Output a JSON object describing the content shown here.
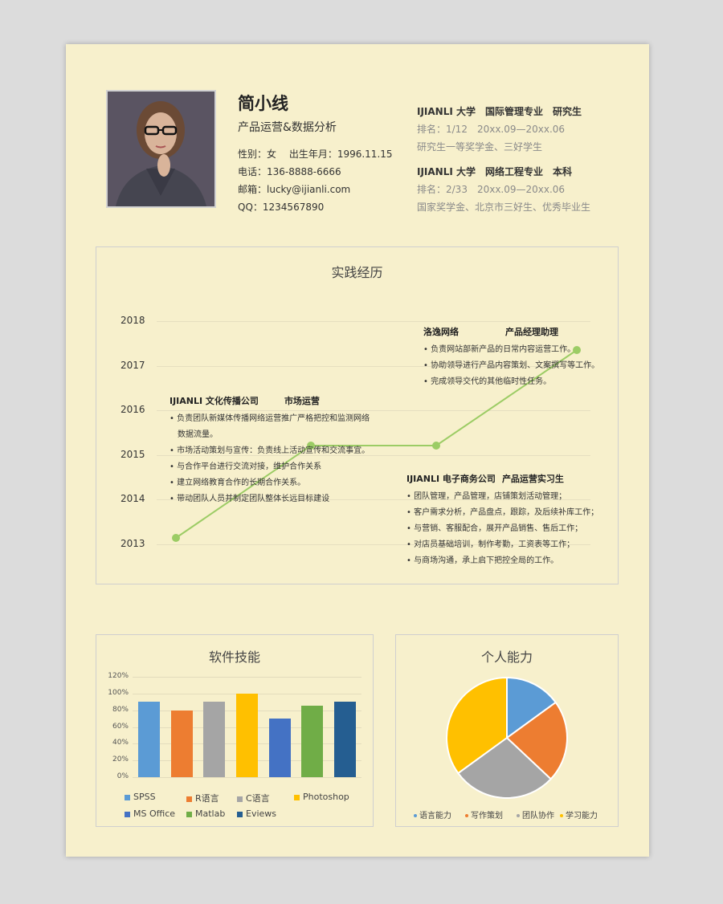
{
  "profile": {
    "name": "简小线",
    "role": "产品运营&数据分析",
    "gender_birth": "性别：女　 出生年月：1996.11.15",
    "phone": "电话：136-8888-6666",
    "email": "邮箱：lucky@ijianli.com",
    "qq": "QQ：1234567890"
  },
  "education": [
    {
      "header": "IJIANLI 大学　国际管理专业　研究生",
      "rank": "排名：1/12　20xx.09—20xx.06",
      "awards": "研究生一等奖学金、三好学生"
    },
    {
      "header": "IJIANLI 大学　网络工程专业　本科",
      "rank": "排名：2/33　20xx.09—20xx.06",
      "awards": "国家奖学金、北京市三好生、优秀毕业生"
    }
  ],
  "practice": {
    "title": "实践经历",
    "years": [
      "2018",
      "2017",
      "2016",
      "2015",
      "2014",
      "2013"
    ],
    "jobs": [
      {
        "company": "洛逸网络",
        "position": "产品经理助理",
        "bullets": [
          "• 负责网站部新产品的日常内容运营工作。",
          "• 协助领导进行产品内容策划、文案撰写等工作。",
          "• 完成领导交代的其他临时性任务。"
        ]
      },
      {
        "company": "IJIANLI 文化传播公司",
        "position": "市场运营",
        "bullets": [
          "• 负责团队新媒体传播网络运营推广严格把控和监测网络",
          "　数据流量。",
          "• 市场活动策划与宣传：负责线上活动宣传和交流事宜。",
          "• 与合作平台进行交流对接，维护合作关系",
          "• 建立网络教育合作的长期合作关系。",
          "• 带动团队人员并制定团队整体长远目标建设"
        ]
      },
      {
        "company": "IJIANLI 电子商务公司",
        "position": "产品运营实习生",
        "bullets": [
          "• 团队管理，产品管理，店铺策划活动管理；",
          "• 客户需求分析，产品盘点，跟踪，及后续补库工作；",
          "• 与营销、客服配合，展开产品销售、售后工作；",
          "• 对店员基础培训，制作考勤，工资表等工作；",
          "• 与商场沟通，承上启下把控全局的工作。"
        ]
      }
    ]
  },
  "chart_data": [
    {
      "type": "bar",
      "title": "软件技能",
      "categories": [
        "SPSS",
        "R语言",
        "C语言",
        "Photoshop",
        "MS Office",
        "Matlab",
        "Eviews"
      ],
      "values": [
        90,
        80,
        90,
        100,
        70,
        85,
        90
      ],
      "colors": [
        "#5b9bd5",
        "#ed7d31",
        "#a5a5a5",
        "#ffc000",
        "#4472c4",
        "#70ad47",
        "#255e91"
      ],
      "ylim": [
        0,
        120
      ],
      "yticks": [
        "120%",
        "100%",
        "80%",
        "60%",
        "40%",
        "20%",
        "0%"
      ],
      "legend": "bottom"
    },
    {
      "type": "pie",
      "title": "个人能力",
      "categories": [
        "语言能力",
        "写作策划",
        "团队协作",
        "学习能力"
      ],
      "values": [
        15,
        22,
        28,
        35
      ],
      "colors": [
        "#5b9bd5",
        "#ed7d31",
        "#a5a5a5",
        "#ffc000"
      ],
      "legend": "bottom"
    }
  ]
}
